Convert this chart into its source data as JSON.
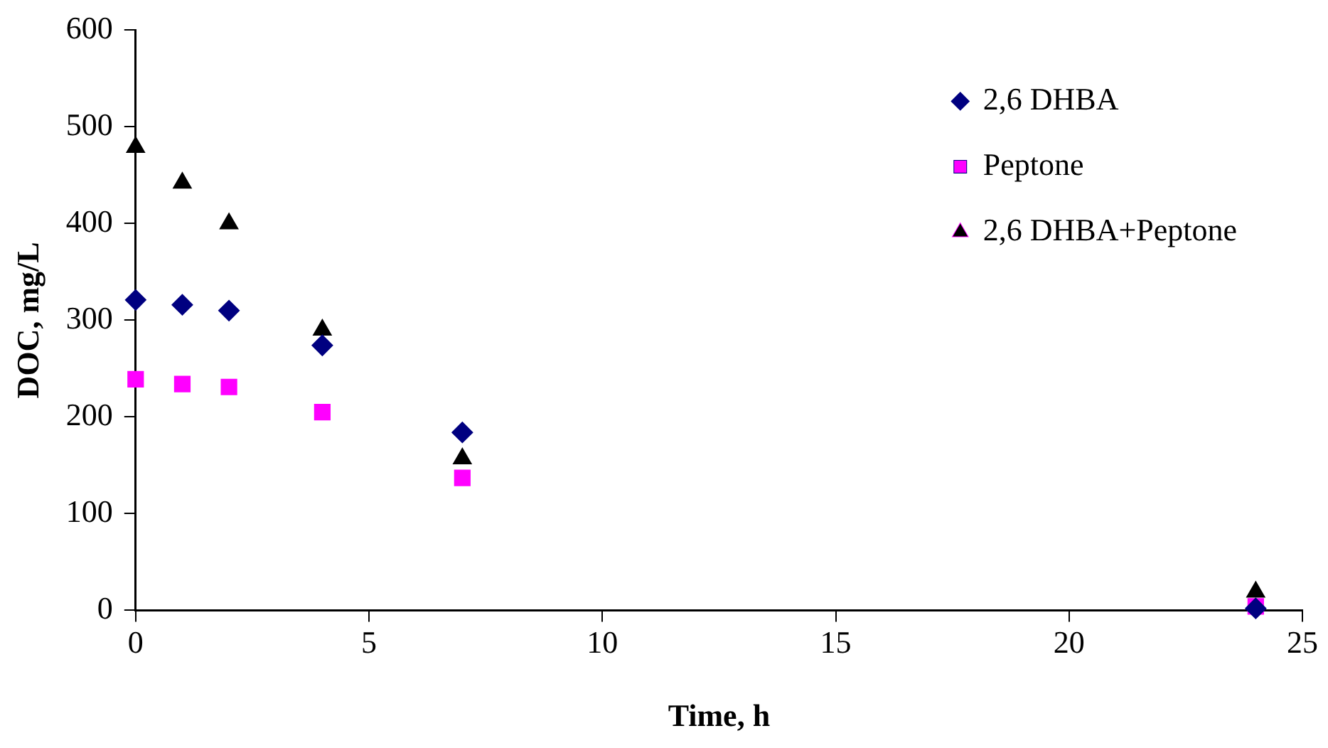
{
  "chart_data": {
    "type": "scatter",
    "xlabel": "Time, h",
    "ylabel": "DOC, mg/L",
    "x": [
      0,
      1,
      2,
      4,
      7,
      24
    ],
    "series": [
      {
        "name": "2,6 DHBA",
        "color": "#000080",
        "marker": "diamond",
        "values": [
          321,
          316,
          310,
          274,
          184,
          2
        ]
      },
      {
        "name": "Peptone",
        "color": "#ff00ff",
        "marker": "square",
        "values": [
          239,
          234,
          231,
          205,
          137,
          4
        ]
      },
      {
        "name": "2,6 DHBA+Peptone",
        "color": "#000000",
        "marker": "triangle",
        "values": [
          479,
          442,
          400,
          290,
          157,
          19
        ]
      }
    ],
    "xlim": [
      0,
      25
    ],
    "xticks": [
      0,
      5,
      10,
      15,
      20,
      25
    ],
    "ylim": [
      0,
      600
    ],
    "yticks": [
      0,
      100,
      200,
      300,
      400,
      500,
      600
    ],
    "grid": false,
    "legend": "top right"
  }
}
